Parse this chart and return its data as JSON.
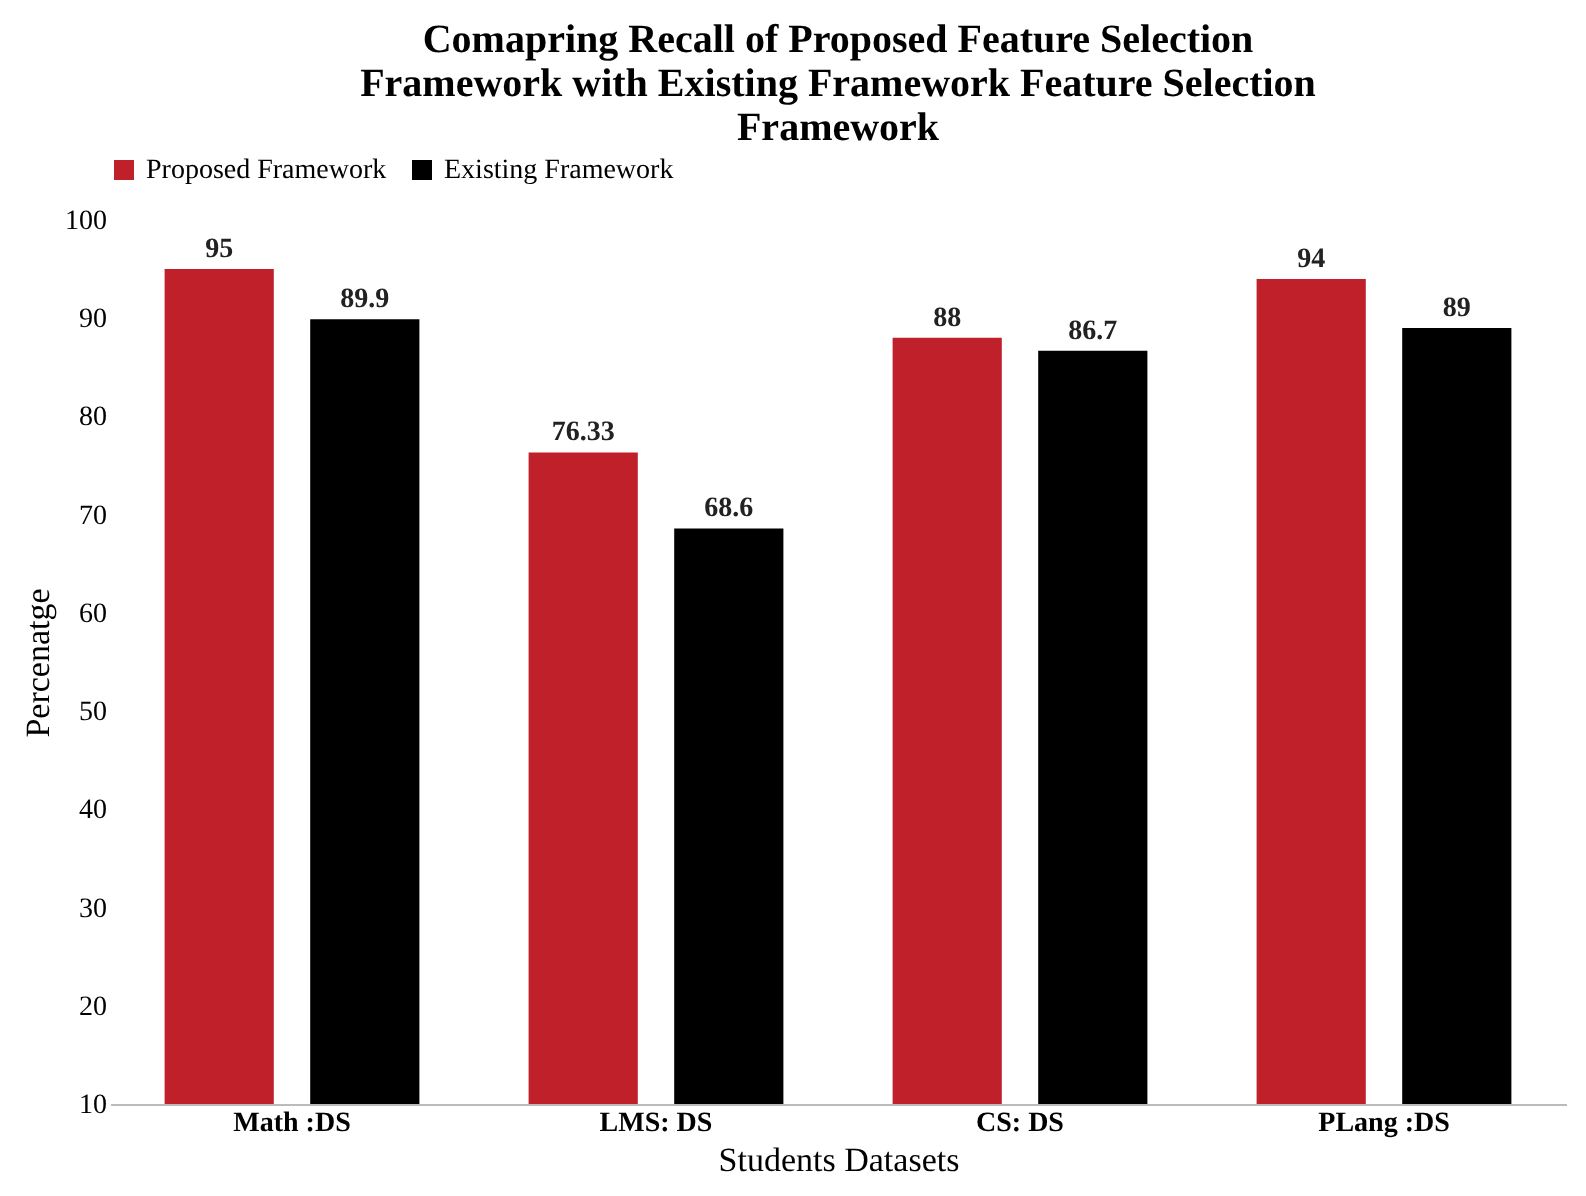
{
  "chart_data": {
    "type": "bar",
    "title": "Comapring Recall of Proposed Feature Selection Framework with Existing Framework Feature Selection Framework",
    "xlabel": "Students Datasets",
    "ylabel": "Percenatge",
    "categories": [
      "Math :DS",
      "LMS: DS",
      "CS: DS",
      "PLang :DS"
    ],
    "series": [
      {
        "name": "Proposed Framework",
        "color": "#c0202a",
        "values": [
          95,
          76.33,
          88,
          94
        ]
      },
      {
        "name": "Existing Framework",
        "color": "#000000",
        "values": [
          89.9,
          68.6,
          86.7,
          89
        ]
      }
    ],
    "ylim": [
      10,
      100
    ],
    "yticks": [
      10,
      20,
      30,
      40,
      50,
      60,
      70,
      80,
      90,
      100
    ],
    "grid": false,
    "legend": "top",
    "data_labels": true
  }
}
